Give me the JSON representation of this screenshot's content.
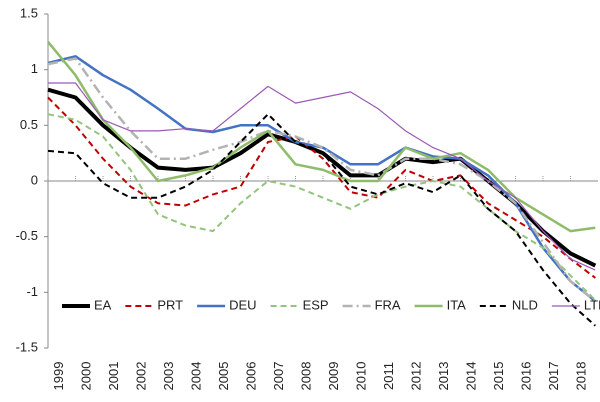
{
  "chart_data": {
    "type": "line",
    "x": [
      1999,
      2000,
      2001,
      2002,
      2003,
      2004,
      2005,
      2006,
      2007,
      2008,
      2009,
      2010,
      2011,
      2012,
      2013,
      2014,
      2015,
      2016,
      2017,
      2018,
      2018.9
    ],
    "xlim": [
      1999,
      2019
    ],
    "xticks": [
      1999,
      2000,
      2001,
      2002,
      2003,
      2004,
      2005,
      2006,
      2007,
      2008,
      2009,
      2010,
      2011,
      2012,
      2013,
      2014,
      2015,
      2016,
      2017,
      2018
    ],
    "ylim": [
      -1.5,
      1.5
    ],
    "yticks": [
      -1.5,
      -1,
      -0.5,
      0,
      0.5,
      1,
      1.5
    ],
    "grid": false,
    "legend": "bottom",
    "series": [
      {
        "name": "EA",
        "color": "#000000",
        "dash": "none",
        "width": 4,
        "values": [
          0.82,
          0.75,
          0.5,
          0.3,
          0.12,
          0.1,
          0.12,
          0.25,
          0.42,
          0.35,
          0.25,
          0.05,
          0.05,
          0.2,
          0.17,
          0.2,
          0.0,
          -0.2,
          -0.45,
          -0.65,
          -0.76
        ]
      },
      {
        "name": "PRT",
        "color": "#c00000",
        "dash": "6 4",
        "width": 2,
        "values": [
          0.75,
          0.5,
          0.2,
          -0.05,
          -0.2,
          -0.22,
          -0.12,
          -0.05,
          0.35,
          0.4,
          0.2,
          -0.1,
          -0.15,
          0.1,
          0.0,
          0.05,
          -0.2,
          -0.35,
          -0.5,
          -0.7,
          -0.87
        ]
      },
      {
        "name": "DEU",
        "color": "#4472c4",
        "dash": "none",
        "width": 2.5,
        "values": [
          1.06,
          1.12,
          0.95,
          0.82,
          0.65,
          0.47,
          0.44,
          0.5,
          0.5,
          0.35,
          0.3,
          0.15,
          0.15,
          0.3,
          0.22,
          0.2,
          0.05,
          -0.2,
          -0.6,
          -0.9,
          -1.08
        ]
      },
      {
        "name": "ESP",
        "color": "#93c47d",
        "dash": "6 4",
        "width": 2,
        "values": [
          0.6,
          0.55,
          0.4,
          0.1,
          -0.3,
          -0.4,
          -0.45,
          -0.2,
          0.0,
          -0.05,
          -0.15,
          -0.25,
          -0.12,
          -0.05,
          0.0,
          -0.05,
          -0.25,
          -0.45,
          -0.6,
          -0.85,
          -1.07
        ]
      },
      {
        "name": "FRA",
        "color": "#b3b3b3",
        "dash": "10 4 2 4",
        "width": 2.5,
        "values": [
          1.05,
          1.1,
          0.75,
          0.45,
          0.2,
          0.2,
          0.28,
          0.35,
          0.45,
          0.4,
          0.3,
          0.1,
          0.05,
          0.2,
          0.2,
          0.15,
          0.0,
          -0.2,
          -0.55,
          -0.9,
          -1.08
        ]
      },
      {
        "name": "ITA",
        "color": "#8fbc6a",
        "dash": "none",
        "width": 2.5,
        "values": [
          1.25,
          0.95,
          0.55,
          0.3,
          0.0,
          0.05,
          0.12,
          0.3,
          0.45,
          0.15,
          0.1,
          0.0,
          0.0,
          0.3,
          0.2,
          0.25,
          0.1,
          -0.15,
          -0.3,
          -0.45,
          -0.42
        ]
      },
      {
        "name": "NLD",
        "color": "#000000",
        "dash": "6 4",
        "width": 2,
        "values": [
          0.27,
          0.25,
          -0.02,
          -0.15,
          -0.15,
          -0.05,
          0.1,
          0.35,
          0.6,
          0.35,
          0.25,
          -0.05,
          -0.12,
          -0.02,
          -0.1,
          0.05,
          -0.25,
          -0.45,
          -0.8,
          -1.1,
          -1.3
        ]
      },
      {
        "name": "LTH",
        "color": "#9b59b6",
        "dash": "none",
        "width": 1.2,
        "values": [
          0.88,
          0.88,
          0.55,
          0.45,
          0.45,
          0.47,
          0.45,
          0.65,
          0.85,
          0.7,
          0.75,
          0.8,
          0.65,
          0.45,
          0.3,
          0.2,
          0.0,
          -0.15,
          -0.45,
          -0.7,
          -0.8
        ]
      }
    ]
  }
}
